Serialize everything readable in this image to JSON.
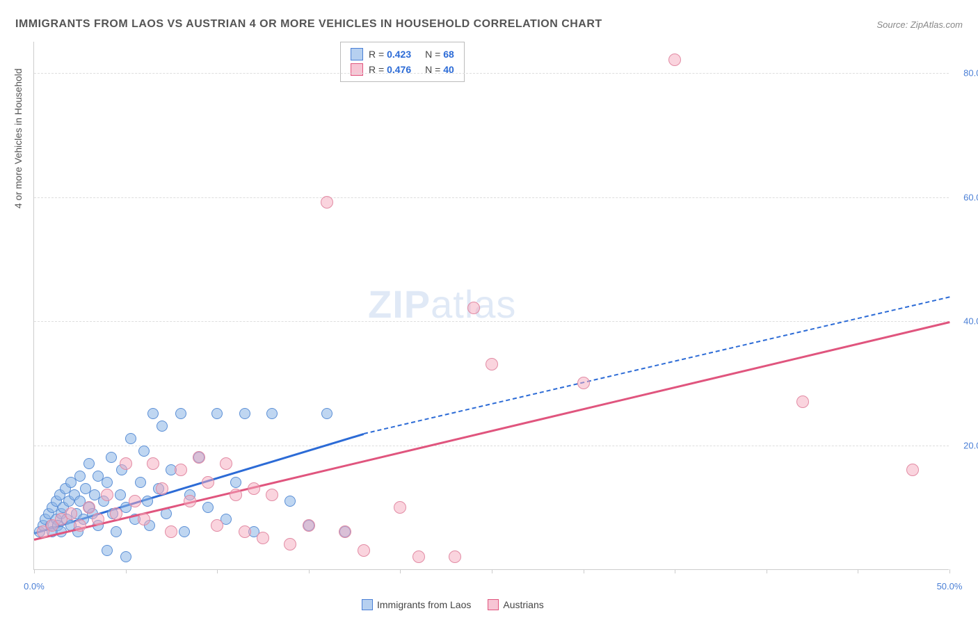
{
  "title": "IMMIGRANTS FROM LAOS VS AUSTRIAN 4 OR MORE VEHICLES IN HOUSEHOLD CORRELATION CHART",
  "source": "Source: ZipAtlas.com",
  "axis": {
    "y_title": "4 or more Vehicles in Household",
    "xlim": [
      0,
      50
    ],
    "ylim": [
      0,
      85
    ],
    "x_ticks": [
      0,
      5,
      10,
      15,
      20,
      25,
      30,
      35,
      40,
      45,
      50
    ],
    "x_labels": [
      {
        "v": 0,
        "t": "0.0%"
      },
      {
        "v": 50,
        "t": "50.0%"
      }
    ],
    "y_gridlines": [
      20,
      40,
      60,
      80
    ],
    "y_labels": [
      {
        "v": 20,
        "t": "20.0%"
      },
      {
        "v": 40,
        "t": "40.0%"
      },
      {
        "v": 60,
        "t": "60.0%"
      },
      {
        "v": 80,
        "t": "80.0%"
      }
    ]
  },
  "legend_top": [
    {
      "color_fill": "#b6d0f0",
      "color_border": "#4a7fd6",
      "r": "0.423",
      "n": "68",
      "label_color": "#2c6bd6"
    },
    {
      "color_fill": "#f7c5d4",
      "color_border": "#e0557e",
      "r": "0.476",
      "n": "40",
      "label_color": "#2c6bd6"
    }
  ],
  "watermark": {
    "zip": "ZIP",
    "atlas": "atlas"
  },
  "series": [
    {
      "name": "Immigrants from Laos",
      "point_fill": "rgba(138,180,230,0.55)",
      "point_border": "#5b8fd6",
      "point_radius": 8,
      "regression": {
        "color": "#2c6bd6",
        "width": 2.5,
        "x1": 0,
        "y1": 6,
        "x2": 18,
        "y2": 22,
        "dash_x2": 50,
        "dash_y2": 44
      },
      "points": [
        [
          0.3,
          6
        ],
        [
          0.5,
          7
        ],
        [
          0.6,
          8
        ],
        [
          0.8,
          9
        ],
        [
          0.9,
          7
        ],
        [
          1.0,
          6
        ],
        [
          1.0,
          10
        ],
        [
          1.2,
          8
        ],
        [
          1.2,
          11
        ],
        [
          1.3,
          7
        ],
        [
          1.4,
          12
        ],
        [
          1.5,
          9
        ],
        [
          1.5,
          6
        ],
        [
          1.6,
          10
        ],
        [
          1.7,
          13
        ],
        [
          1.8,
          8
        ],
        [
          1.9,
          11
        ],
        [
          2.0,
          7
        ],
        [
          2.0,
          14
        ],
        [
          2.2,
          12
        ],
        [
          2.3,
          9
        ],
        [
          2.4,
          6
        ],
        [
          2.5,
          11
        ],
        [
          2.5,
          15
        ],
        [
          2.7,
          8
        ],
        [
          2.8,
          13
        ],
        [
          3.0,
          10
        ],
        [
          3.0,
          17
        ],
        [
          3.2,
          9
        ],
        [
          3.3,
          12
        ],
        [
          3.5,
          7
        ],
        [
          3.5,
          15
        ],
        [
          3.8,
          11
        ],
        [
          4.0,
          14
        ],
        [
          4.0,
          3
        ],
        [
          4.2,
          18
        ],
        [
          4.3,
          9
        ],
        [
          4.5,
          6
        ],
        [
          4.7,
          12
        ],
        [
          4.8,
          16
        ],
        [
          5.0,
          10
        ],
        [
          5.0,
          2
        ],
        [
          5.3,
          21
        ],
        [
          5.5,
          8
        ],
        [
          5.8,
          14
        ],
        [
          6.0,
          19
        ],
        [
          6.2,
          11
        ],
        [
          6.3,
          7
        ],
        [
          6.5,
          25
        ],
        [
          6.8,
          13
        ],
        [
          7.0,
          23
        ],
        [
          7.2,
          9
        ],
        [
          7.5,
          16
        ],
        [
          8.0,
          25
        ],
        [
          8.2,
          6
        ],
        [
          8.5,
          12
        ],
        [
          9.0,
          18
        ],
        [
          9.5,
          10
        ],
        [
          10.0,
          25
        ],
        [
          10.5,
          8
        ],
        [
          11.0,
          14
        ],
        [
          11.5,
          25
        ],
        [
          12.0,
          6
        ],
        [
          13.0,
          25
        ],
        [
          14.0,
          11
        ],
        [
          15.0,
          7
        ],
        [
          16.0,
          25
        ],
        [
          17.0,
          6
        ]
      ]
    },
    {
      "name": "Austrians",
      "point_fill": "rgba(245,170,190,0.5)",
      "point_border": "#e28ba4",
      "point_radius": 9,
      "regression": {
        "color": "#e0557e",
        "width": 2.5,
        "x1": 0,
        "y1": 5,
        "x2": 50,
        "y2": 40
      },
      "points": [
        [
          0.5,
          6
        ],
        [
          1.0,
          7
        ],
        [
          1.5,
          8
        ],
        [
          2.0,
          9
        ],
        [
          2.5,
          7
        ],
        [
          3.0,
          10
        ],
        [
          3.5,
          8
        ],
        [
          4.0,
          12
        ],
        [
          4.5,
          9
        ],
        [
          5.0,
          17
        ],
        [
          5.5,
          11
        ],
        [
          6.0,
          8
        ],
        [
          6.5,
          17
        ],
        [
          7.0,
          13
        ],
        [
          7.5,
          6
        ],
        [
          8.0,
          16
        ],
        [
          8.5,
          11
        ],
        [
          9.0,
          18
        ],
        [
          9.5,
          14
        ],
        [
          10.0,
          7
        ],
        [
          10.5,
          17
        ],
        [
          11.0,
          12
        ],
        [
          11.5,
          6
        ],
        [
          12.0,
          13
        ],
        [
          12.5,
          5
        ],
        [
          13.0,
          12
        ],
        [
          14.0,
          4
        ],
        [
          15.0,
          7
        ],
        [
          16.0,
          59
        ],
        [
          17.0,
          6
        ],
        [
          18.0,
          3
        ],
        [
          20.0,
          10
        ],
        [
          21.0,
          2
        ],
        [
          23.0,
          2
        ],
        [
          24.0,
          42
        ],
        [
          25.0,
          33
        ],
        [
          30.0,
          30
        ],
        [
          35.0,
          82
        ],
        [
          42.0,
          27
        ],
        [
          48.0,
          16
        ]
      ]
    }
  ],
  "bottom_legend": [
    {
      "fill": "#b6d0f0",
      "border": "#4a7fd6",
      "label": "Immigrants from Laos"
    },
    {
      "fill": "#f7c5d4",
      "border": "#e0557e",
      "label": "Austrians"
    }
  ]
}
